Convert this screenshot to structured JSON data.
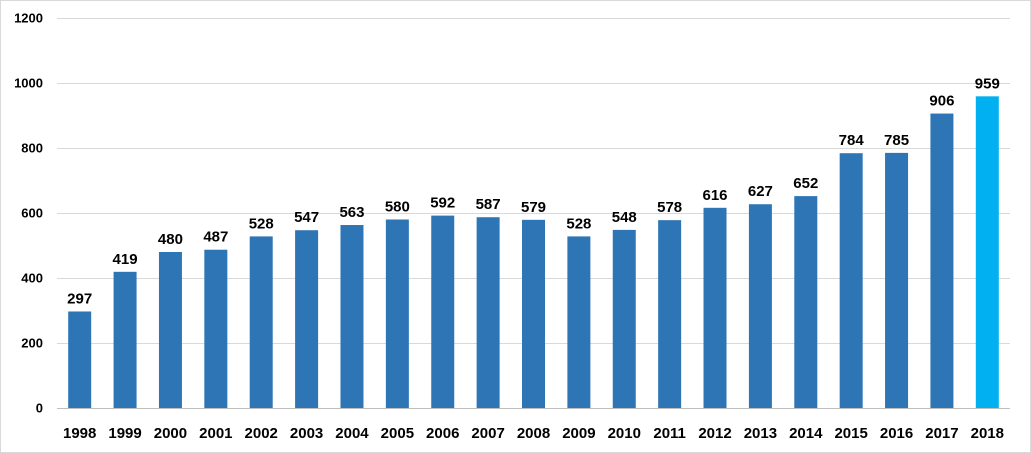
{
  "chart_data": {
    "type": "bar",
    "title": "",
    "xlabel": "",
    "ylabel": "",
    "categories": [
      "1998",
      "1999",
      "2000",
      "2001",
      "2002",
      "2003",
      "2004",
      "2005",
      "2006",
      "2007",
      "2008",
      "2009",
      "2010",
      "2011",
      "2012",
      "2013",
      "2014",
      "2015",
      "2016",
      "2017",
      "2018"
    ],
    "values": [
      297,
      419,
      480,
      487,
      528,
      547,
      563,
      580,
      592,
      587,
      579,
      528,
      548,
      578,
      616,
      627,
      652,
      784,
      785,
      906,
      959
    ],
    "ylim": [
      0,
      1200
    ],
    "yticks": [
      0,
      200,
      400,
      600,
      800,
      1000,
      1200
    ],
    "grid": true,
    "legend": "none",
    "data_labels": true,
    "colors": {
      "bar": "#2e75b6",
      "highlight_bar": "#00b0f0",
      "highlight_category": "2018",
      "gridline": "#d9d9d9",
      "text": "#000000"
    }
  }
}
